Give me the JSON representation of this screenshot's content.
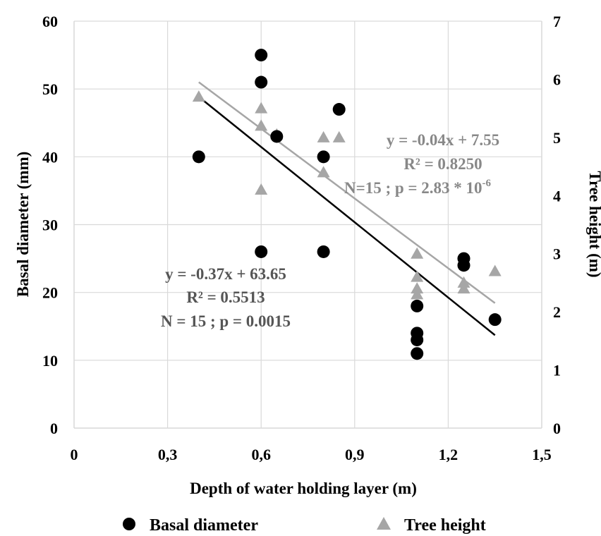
{
  "chart_data": {
    "type": "scatter",
    "xlabel": "Depth of water holding  layer (m)",
    "ylabel": "Basal diameter (mm)",
    "y2label": "Tree height (m)",
    "xlim": [
      0,
      1.5
    ],
    "ylim": [
      0,
      60
    ],
    "y2lim": [
      0,
      7
    ],
    "x_ticks": [
      "0",
      "0,3",
      "0,6",
      "0,9",
      "1,2",
      "1,5"
    ],
    "y_ticks": [
      "0",
      "10",
      "20",
      "30",
      "40",
      "50",
      "60"
    ],
    "y2_ticks": [
      "0",
      "1",
      "2",
      "3",
      "4",
      "5",
      "6",
      "7"
    ],
    "grid": true,
    "legend_position": "bottom",
    "colors": {
      "basal": "#000000",
      "height": "#a6a6a6",
      "grid": "#d9d9d9"
    },
    "series": [
      {
        "name": "Basal diameter",
        "marker": "circle",
        "axis": "left",
        "points": [
          [
            0.4,
            40
          ],
          [
            0.6,
            55
          ],
          [
            0.6,
            51
          ],
          [
            0.6,
            26
          ],
          [
            0.65,
            43
          ],
          [
            0.8,
            40
          ],
          [
            0.8,
            26
          ],
          [
            0.85,
            47
          ],
          [
            1.1,
            18
          ],
          [
            1.1,
            14
          ],
          [
            1.1,
            13
          ],
          [
            1.1,
            11
          ],
          [
            1.25,
            25
          ],
          [
            1.25,
            24
          ],
          [
            1.35,
            16
          ]
        ],
        "trendline": {
          "x1": 0.4,
          "x2": 1.35,
          "slope": -0.37,
          "intercept": 63.65
        }
      },
      {
        "name": "Tree height",
        "marker": "triangle",
        "axis": "right",
        "points": [
          [
            0.4,
            5.7
          ],
          [
            0.6,
            5.5
          ],
          [
            0.6,
            5.2
          ],
          [
            0.6,
            4.1
          ],
          [
            0.65,
            5.05
          ],
          [
            0.8,
            5.0
          ],
          [
            0.8,
            4.4
          ],
          [
            0.85,
            5.0
          ],
          [
            1.1,
            3.0
          ],
          [
            1.1,
            2.6
          ],
          [
            1.1,
            2.4
          ],
          [
            1.1,
            2.3
          ],
          [
            1.25,
            2.5
          ],
          [
            1.25,
            2.4
          ],
          [
            1.35,
            2.7
          ]
        ],
        "trendline": {
          "x1": 0.4,
          "x2": 1.35,
          "slope": -0.04,
          "intercept": 7.55
        }
      }
    ],
    "annotations": {
      "basal": [
        "y = -0.37x + 63.65",
        "R² = 0.5513",
        "N = 15 ; p = 0.0015"
      ],
      "height": [
        "y = -0.04x + 7.55",
        "R² = 0.8250",
        "N=15 ; p = 2.83 * 10",
        "-6"
      ]
    }
  }
}
